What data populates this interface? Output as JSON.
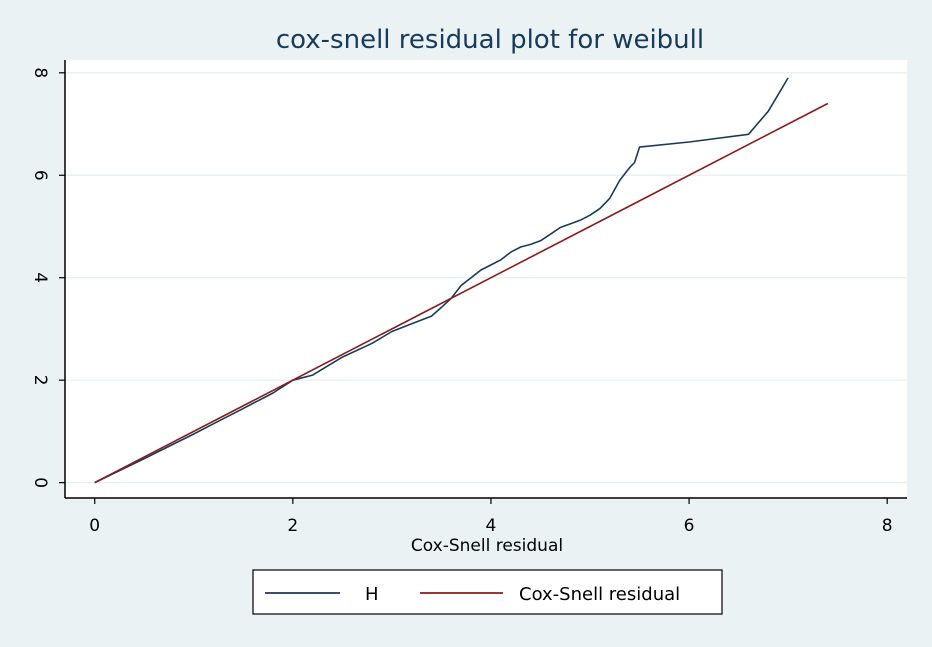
{
  "chart_data": {
    "type": "line",
    "title": "cox-snell residual plot for weibull",
    "xlabel": "Cox-Snell residual",
    "ylabel": "",
    "xlim": [
      -0.3,
      8.2
    ],
    "ylim": [
      -0.3,
      8.25
    ],
    "xticks": [
      0,
      2,
      4,
      6,
      8
    ],
    "yticks": [
      0,
      2,
      4,
      6,
      8
    ],
    "x_tick_labels": [
      "0",
      "2",
      "4",
      "6",
      "8"
    ],
    "y_tick_labels": [
      "0",
      "2",
      "4",
      "6",
      "8"
    ],
    "grid": true,
    "legend_position": "bottom",
    "colors": {
      "background": "#eaf2f3",
      "plot_area": "#ffffff",
      "H": "#1a3a5c",
      "Cox-Snell residual": "#8b1a1a",
      "grid": "#e4eef0"
    },
    "series": [
      {
        "name": "H",
        "x": [
          0,
          0.5,
          1.0,
          1.2,
          1.5,
          1.8,
          2.0,
          2.2,
          2.5,
          2.8,
          3.0,
          3.2,
          3.4,
          3.5,
          3.6,
          3.7,
          3.8,
          3.9,
          4.0,
          4.1,
          4.2,
          4.3,
          4.4,
          4.5,
          4.6,
          4.7,
          4.8,
          4.9,
          5.0,
          5.1,
          5.2,
          5.3,
          5.4,
          5.45,
          5.5,
          6.0,
          6.6,
          6.8,
          7.0
        ],
        "y": [
          0,
          0.47,
          0.95,
          1.15,
          1.45,
          1.75,
          2.0,
          2.1,
          2.45,
          2.72,
          2.95,
          3.1,
          3.25,
          3.42,
          3.6,
          3.85,
          4.0,
          4.15,
          4.25,
          4.35,
          4.5,
          4.6,
          4.65,
          4.72,
          4.85,
          4.98,
          5.05,
          5.12,
          5.22,
          5.35,
          5.55,
          5.9,
          6.15,
          6.25,
          6.55,
          6.65,
          6.8,
          7.25,
          7.9
        ]
      },
      {
        "name": "Cox-Snell residual",
        "x": [
          0,
          7.4
        ],
        "y": [
          0,
          7.4
        ]
      }
    ]
  }
}
